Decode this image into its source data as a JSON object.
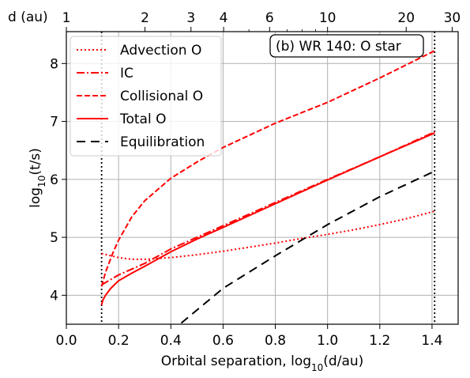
{
  "chart_data": {
    "type": "line",
    "annotation": "(b) WR 140: O star",
    "xlabel": "Orbital separation, log$_{10}$(d/au)",
    "ylabel": "log$_{10}$(t/s)",
    "top_axis_label": "d (au)",
    "xlim": [
      0.0,
      1.5
    ],
    "ylim": [
      3.5,
      8.55
    ],
    "x_ticks": [
      0.0,
      0.2,
      0.4,
      0.6,
      0.8,
      1.0,
      1.2,
      1.4
    ],
    "x_tick_labels": [
      "0.0",
      "0.2",
      "0.4",
      "0.6",
      "0.8",
      "1.0",
      "1.2",
      "1.4"
    ],
    "y_ticks": [
      4,
      5,
      6,
      7,
      8
    ],
    "y_tick_labels": [
      "4",
      "5",
      "6",
      "7",
      "8"
    ],
    "top_ticks": [
      1,
      2,
      3,
      4,
      6,
      10,
      20,
      30
    ],
    "top_tick_labels": [
      "1",
      "2",
      "3",
      "4",
      "6",
      "10",
      "20",
      "30"
    ],
    "top_minor_ticks": [
      5,
      7,
      8,
      9
    ],
    "vertical_markers": [
      0.135,
      1.41
    ],
    "grid": true,
    "legend_position": "top-left",
    "colors": {
      "red": "#ff0000",
      "black": "#000000"
    },
    "series": [
      {
        "name": "Advection O",
        "style": "dotted",
        "color": "#ff0000",
        "x": [
          0.135,
          0.2,
          0.25,
          0.3,
          0.4,
          0.5,
          0.6,
          0.7,
          0.8,
          0.9,
          1.0,
          1.1,
          1.2,
          1.3,
          1.41
        ],
        "y": [
          4.72,
          4.65,
          4.62,
          4.62,
          4.65,
          4.7,
          4.76,
          4.83,
          4.9,
          4.98,
          5.05,
          5.13,
          5.22,
          5.32,
          5.45
        ]
      },
      {
        "name": "IC",
        "style": "dashdot",
        "color": "#ff0000",
        "x": [
          0.135,
          0.2,
          0.3,
          0.4,
          0.5,
          0.6,
          0.8,
          1.0,
          1.2,
          1.41
        ],
        "y": [
          4.18,
          4.35,
          4.55,
          4.8,
          5.0,
          5.2,
          5.6,
          6.0,
          6.39,
          6.82
        ]
      },
      {
        "name": "Collisional O",
        "style": "dashed",
        "color": "#ff0000",
        "x": [
          0.135,
          0.15,
          0.18,
          0.2,
          0.25,
          0.3,
          0.4,
          0.5,
          0.6,
          0.8,
          1.0,
          1.2,
          1.41
        ],
        "y": [
          4.15,
          4.4,
          4.75,
          4.95,
          5.35,
          5.63,
          6.02,
          6.3,
          6.55,
          6.97,
          7.33,
          7.75,
          8.22
        ]
      },
      {
        "name": "Total O",
        "style": "solid",
        "color": "#ff0000",
        "x": [
          0.135,
          0.14,
          0.15,
          0.17,
          0.2,
          0.25,
          0.3,
          0.4,
          0.5,
          0.6,
          0.8,
          1.0,
          1.2,
          1.41
        ],
        "y": [
          3.83,
          3.92,
          4.0,
          4.12,
          4.25,
          4.38,
          4.5,
          4.75,
          4.97,
          5.17,
          5.58,
          5.99,
          6.39,
          6.8
        ]
      },
      {
        "name": "Equilibration",
        "style": "longdash",
        "color": "#000000",
        "x": [
          0.44,
          0.6,
          0.8,
          1.0,
          1.2,
          1.4
        ],
        "y": [
          3.52,
          4.12,
          4.68,
          5.22,
          5.7,
          6.12
        ]
      }
    ]
  }
}
